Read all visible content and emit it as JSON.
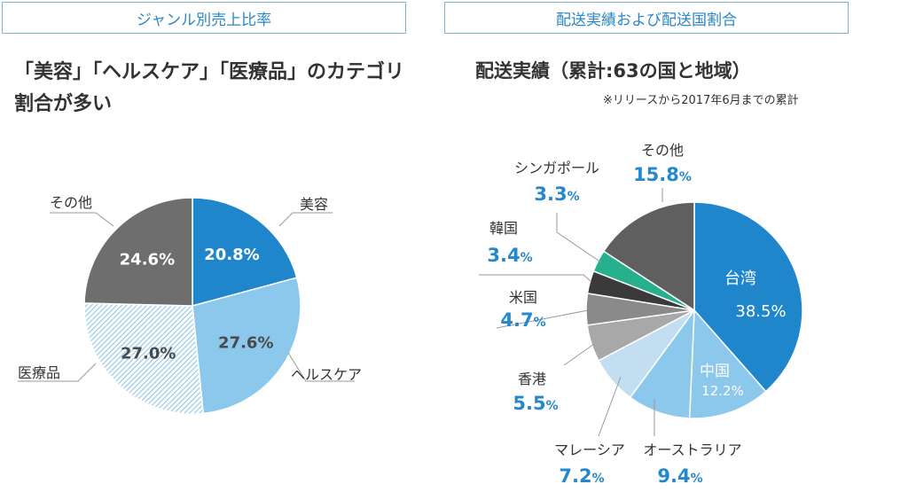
{
  "tabs": {
    "left": "ジャンル別売上比率",
    "right": "配送実績および配送国割合"
  },
  "left_headline": {
    "line1": "「美容」「ヘルスケア」「医療品」のカテゴリ",
    "line2": "割合が多い"
  },
  "right_heading": "配送実績（累計:63の国と地域）",
  "right_note": "※リリースから2017年6月までの累計",
  "colors": {
    "blue": "#1f86cc",
    "light_blue": "#8cc7ec",
    "gray": "#6e6e6e",
    "accent_text": "#2688cc"
  },
  "chart_data": [
    {
      "type": "pie",
      "title": "ジャンル別売上比率",
      "slices": [
        {
          "label": "美容",
          "value": 20.8,
          "display": "20.8%"
        },
        {
          "label": "ヘルスケア",
          "value": 27.6,
          "display": "27.6%"
        },
        {
          "label": "医療品",
          "value": 27.0,
          "display": "27.0%"
        },
        {
          "label": "その他",
          "value": 24.6,
          "display": "24.6%"
        }
      ]
    },
    {
      "type": "pie",
      "title": "配送実績および配送国割合",
      "slices": [
        {
          "label": "台湾",
          "value": 38.5,
          "display": "38.5%"
        },
        {
          "label": "中国",
          "value": 12.2,
          "display": "12.2%"
        },
        {
          "label": "オーストラリア",
          "value": 9.4,
          "display": "9.4"
        },
        {
          "label": "マレーシア",
          "value": 7.2,
          "display": "7.2"
        },
        {
          "label": "香港",
          "value": 5.5,
          "display": "5.5"
        },
        {
          "label": "米国",
          "value": 4.7,
          "display": "4.7"
        },
        {
          "label": "韓国",
          "value": 3.4,
          "display": "3.4"
        },
        {
          "label": "シンガポール",
          "value": 3.3,
          "display": "3.3"
        },
        {
          "label": "その他",
          "value": 15.8,
          "display": "15.8"
        }
      ]
    }
  ]
}
